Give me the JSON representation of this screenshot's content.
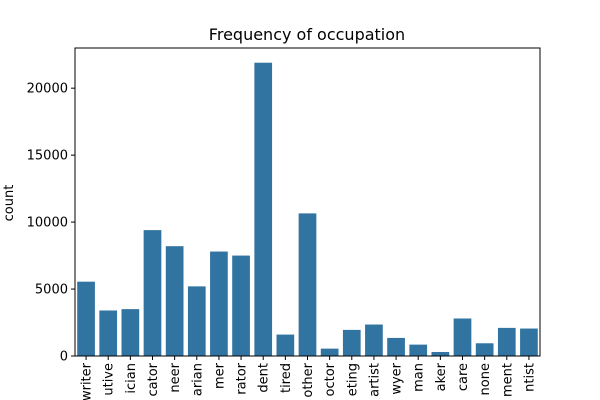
{
  "chart_data": {
    "type": "bar",
    "title": "Frequency of occupation",
    "xlabel": "",
    "ylabel": "count",
    "ylim": [
      0,
      23000
    ],
    "yticks": [
      0,
      5000,
      10000,
      15000,
      20000
    ],
    "ytick_labels": [
      "0",
      "5000",
      "10000",
      "15000",
      "20000"
    ],
    "categories": [
      "writer",
      "utive",
      "ician",
      "cator",
      "neer",
      "arian",
      "mer",
      "rator",
      "dent",
      "tired",
      "other",
      "octor",
      "eting",
      "artist",
      "wyer",
      "man",
      "aker",
      "care",
      "none",
      "ment",
      "ntist"
    ],
    "values": [
      5550,
      3400,
      3500,
      9400,
      8200,
      5200,
      7800,
      7500,
      21900,
      1600,
      10650,
      550,
      1950,
      2350,
      1350,
      850,
      300,
      2800,
      950,
      2100,
      2050
    ],
    "bar_color": "#3274a1",
    "grid": false,
    "legend": "none"
  }
}
